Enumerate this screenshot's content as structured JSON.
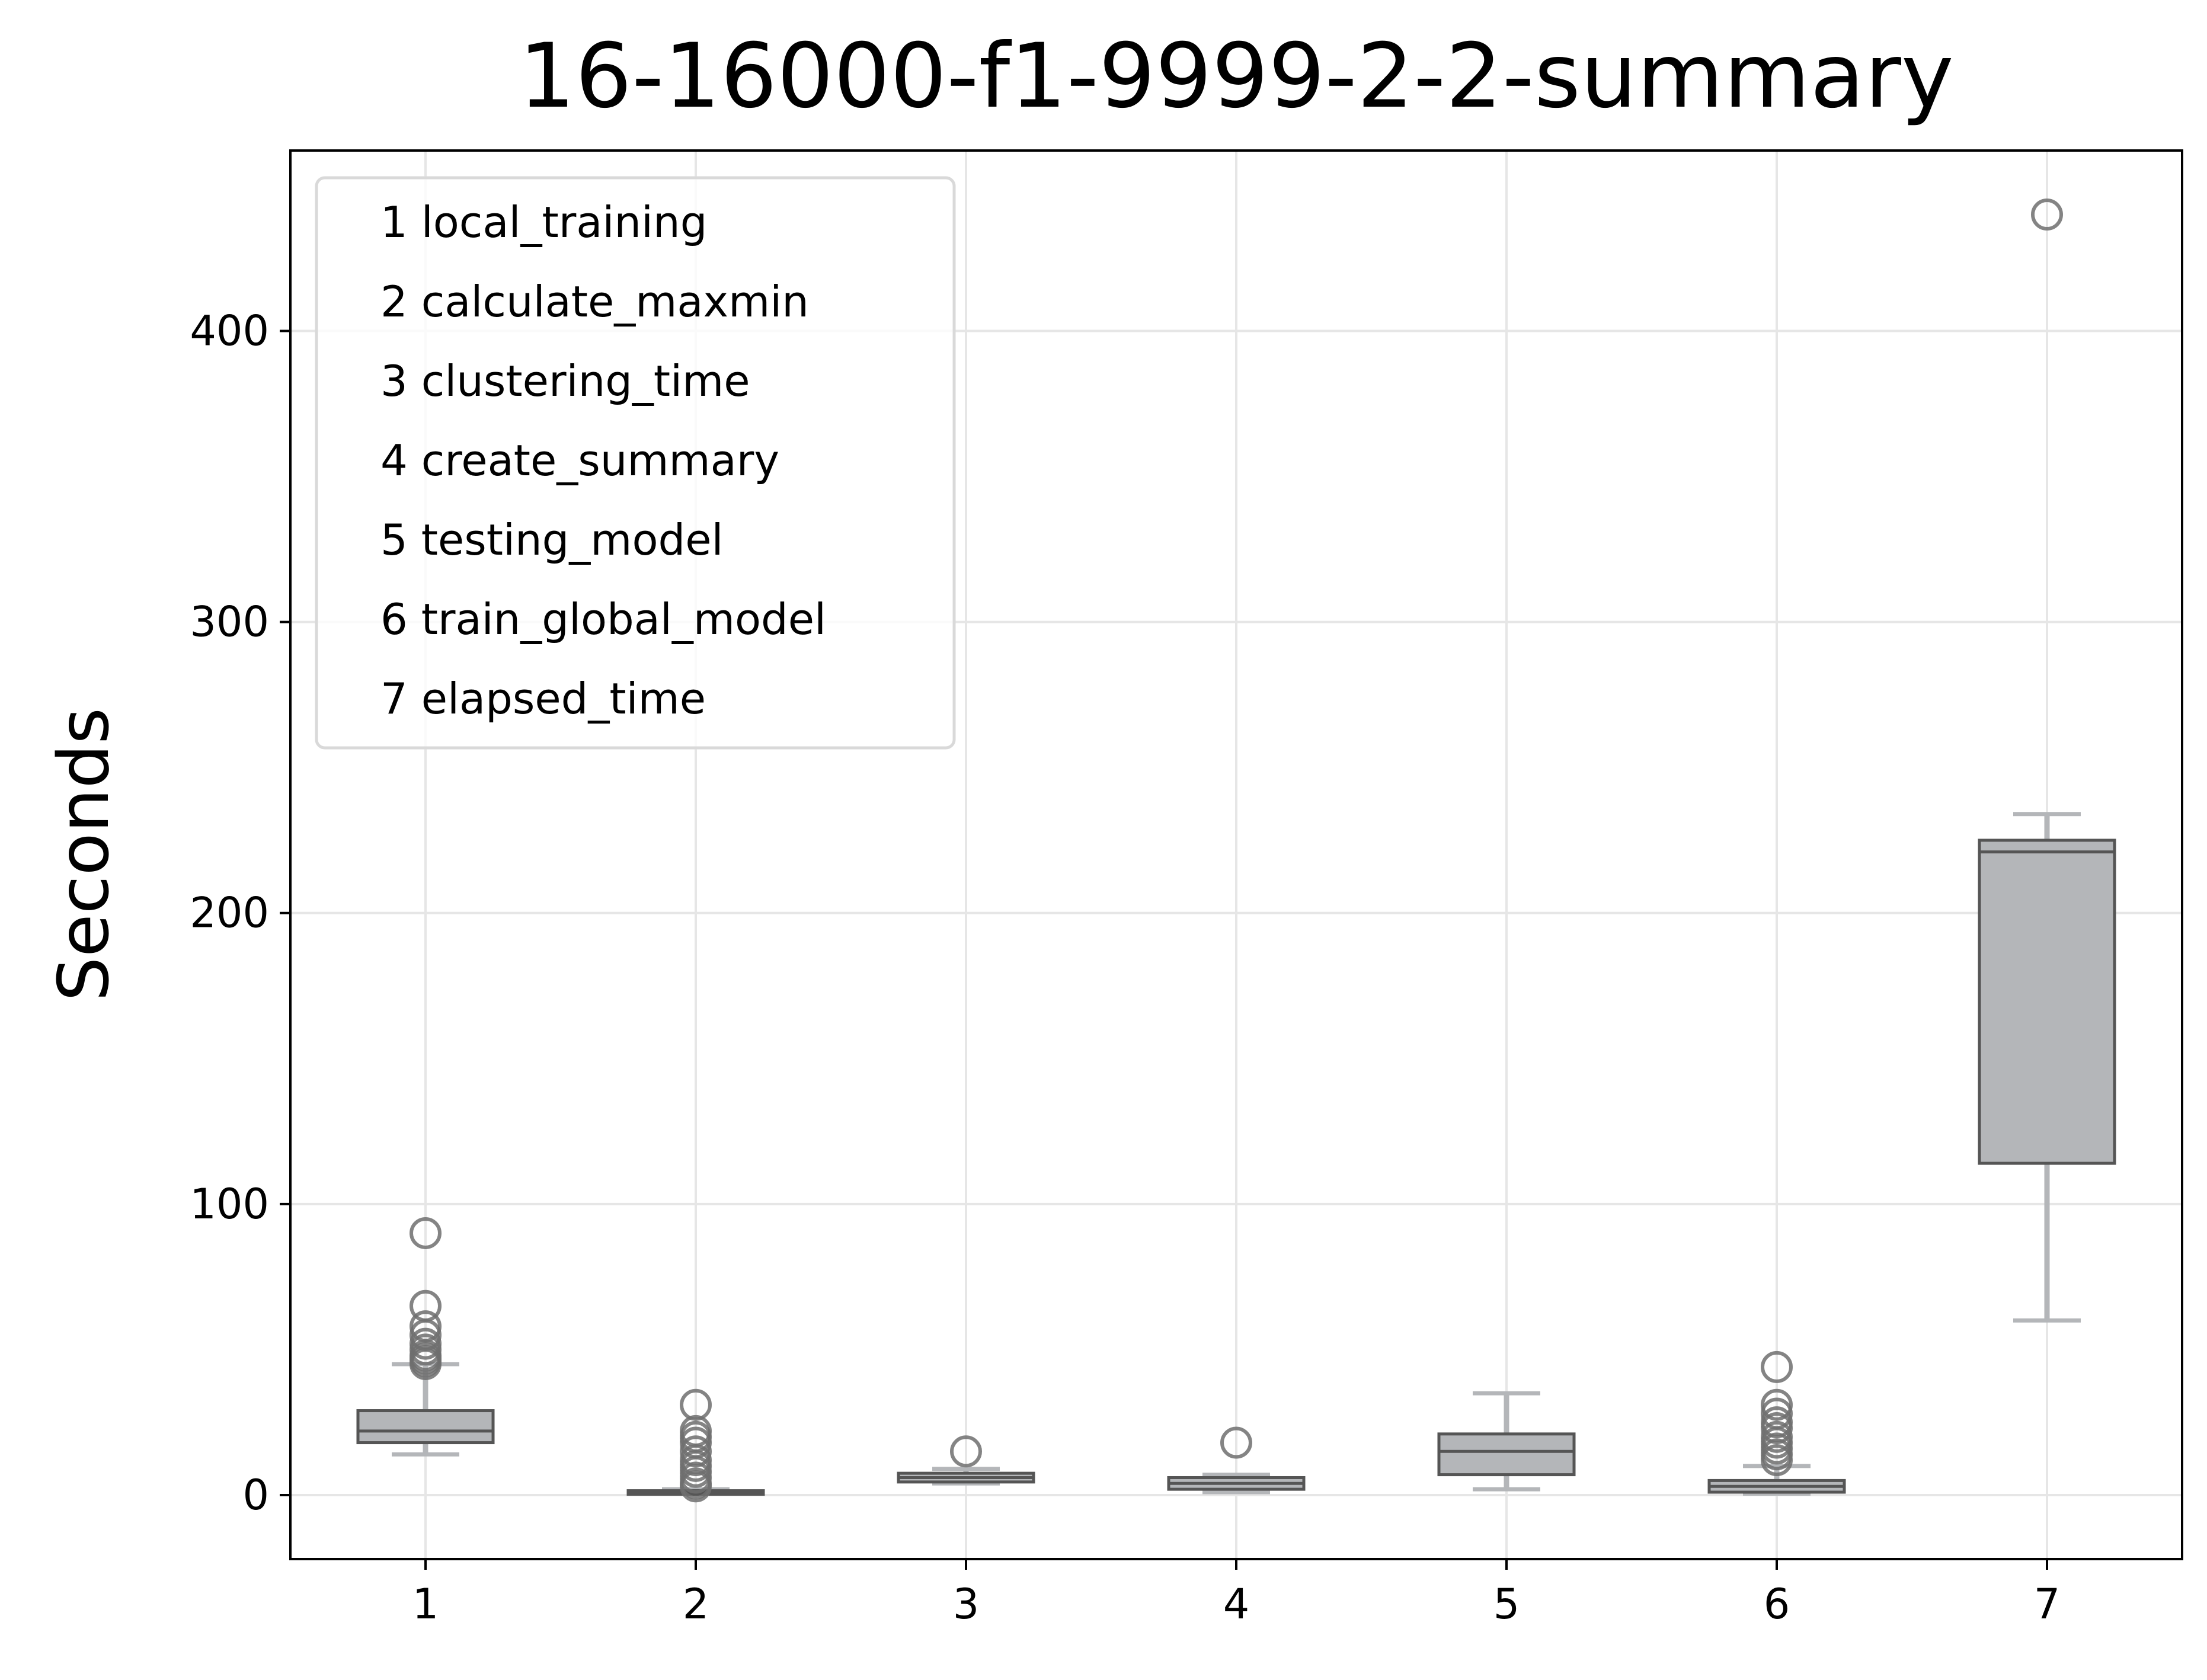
{
  "chart_data": {
    "type": "box",
    "title": "16-16000-f1-9999-2-2-summary",
    "xlabel": "",
    "ylabel": "Seconds",
    "xlim": [
      0.5,
      7.5
    ],
    "ylim": [
      -22,
      462
    ],
    "yticks": [
      0,
      100,
      200,
      300,
      400
    ],
    "xticks": [
      "1",
      "2",
      "3",
      "4",
      "5",
      "6",
      "7"
    ],
    "grid": true,
    "legend": {
      "placement": "upper-left",
      "entries": [
        "1 local_training",
        "2 calculate_maxmin",
        "3 clustering_time",
        "4 create_summary",
        "5 testing_model",
        "6 train_global_model",
        "7 elapsed_time"
      ]
    },
    "colors": {
      "box_fill": "#b4b6b9",
      "box_edge": "#555555",
      "whisker": "#b4b6b9",
      "outlier_edge": "#6e6e6e",
      "grid": "#e6e6e6",
      "legend_edge": "#d9d9d9"
    },
    "series": [
      {
        "category": "1",
        "whisker_low": 14,
        "q1": 18,
        "median": 22,
        "q3": 29,
        "whisker_high": 45,
        "outliers": [
          45,
          46,
          47,
          48,
          50,
          52,
          55,
          58,
          65,
          90
        ]
      },
      {
        "category": "2",
        "whisker_low": 0.5,
        "q1": 0.5,
        "median": 1,
        "q3": 1.5,
        "whisker_high": 2,
        "outliers": [
          3,
          4,
          6,
          8,
          10,
          12,
          15,
          18,
          20,
          22,
          31
        ]
      },
      {
        "category": "3",
        "whisker_low": 4,
        "q1": 4.5,
        "median": 6,
        "q3": 7.5,
        "whisker_high": 9,
        "outliers": [
          15
        ]
      },
      {
        "category": "4",
        "whisker_low": 1,
        "q1": 2,
        "median": 4,
        "q3": 6,
        "whisker_high": 7,
        "outliers": [
          18
        ]
      },
      {
        "category": "5",
        "whisker_low": 2,
        "q1": 7,
        "median": 15,
        "q3": 21,
        "whisker_high": 35,
        "outliers": []
      },
      {
        "category": "6",
        "whisker_low": 0.5,
        "q1": 1,
        "median": 3,
        "q3": 5,
        "whisker_high": 10,
        "outliers": [
          12,
          14,
          16,
          18,
          20,
          23,
          25,
          28,
          31,
          44
        ]
      },
      {
        "category": "7",
        "whisker_low": 60,
        "q1": 114,
        "median": 221,
        "q3": 225,
        "whisker_high": 234,
        "outliers": [
          440
        ]
      }
    ]
  }
}
